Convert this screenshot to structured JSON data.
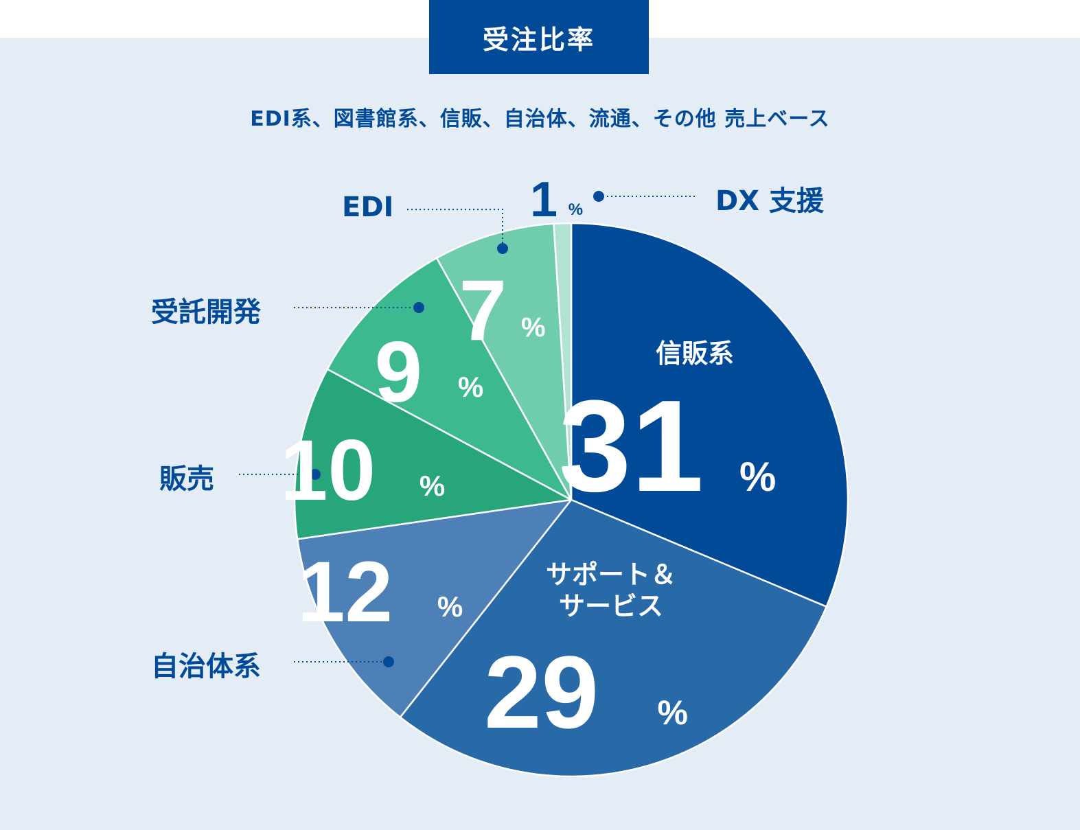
{
  "header": {
    "title": "受注比率"
  },
  "subtitle": "EDI系、図書館系、信販、自治体、流通、その他 売上ベース",
  "percent_unit": "%",
  "colors": {
    "title_bg": "#004a97",
    "panel_bg": "#e4ecf5",
    "label_text": "#004a97",
    "slice_text": "#ffffff"
  },
  "chart_data": {
    "type": "pie",
    "title": "受注比率",
    "subtitle": "EDI系、図書館系、信販、自治体、流通、その他 売上ベース",
    "unit": "%",
    "slices": [
      {
        "label": "信販系",
        "value": 31,
        "color": "#004a97",
        "label_position": "inside"
      },
      {
        "label": "サポート＆\nサービス",
        "value": 29,
        "color": "#2869a8",
        "label_position": "inside"
      },
      {
        "label": "自治体系",
        "value": 12,
        "color": "#4c80b7",
        "label_position": "outside"
      },
      {
        "label": "販売",
        "value": 10,
        "color": "#27a67c",
        "label_position": "outside"
      },
      {
        "label": "受託開発",
        "value": 9,
        "color": "#3db990",
        "label_position": "outside"
      },
      {
        "label": "EDI",
        "value": 7,
        "color": "#6fcdad",
        "label_position": "outside"
      },
      {
        "label": "DX 支援",
        "value": 1,
        "color": "#b2e2d3",
        "label_position": "outside"
      }
    ]
  }
}
